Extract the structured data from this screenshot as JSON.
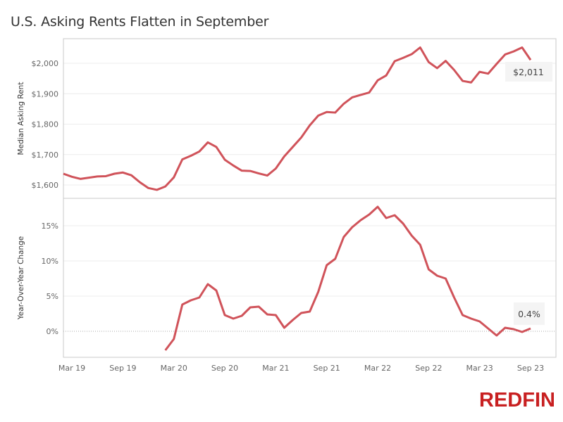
{
  "title": "U.S. Asking Rents Flatten in September",
  "logo": "REDFIN",
  "chart_data": [
    {
      "type": "line",
      "ylabel": "Median Asking Rent",
      "ylim": [
        1570,
        2070
      ],
      "yticks": [
        1600,
        1700,
        1800,
        1900,
        2000
      ],
      "ytick_labels": [
        "$1,600",
        "$1,700",
        "$1,800",
        "$1,900",
        "$2,000"
      ],
      "grid": true,
      "line_color": "#d0535a",
      "x": [
        "2019-02",
        "2019-03",
        "2019-04",
        "2019-05",
        "2019-06",
        "2019-07",
        "2019-08",
        "2019-09",
        "2019-10",
        "2019-11",
        "2019-12",
        "2020-01",
        "2020-02",
        "2020-03",
        "2020-04",
        "2020-05",
        "2020-06",
        "2020-07",
        "2020-08",
        "2020-09",
        "2020-10",
        "2020-11",
        "2020-12",
        "2021-01",
        "2021-02",
        "2021-03",
        "2021-04",
        "2021-05",
        "2021-06",
        "2021-07",
        "2021-08",
        "2021-09",
        "2021-10",
        "2021-11",
        "2021-12",
        "2022-01",
        "2022-02",
        "2022-03",
        "2022-04",
        "2022-05",
        "2022-06",
        "2022-07",
        "2022-08",
        "2022-09",
        "2022-10",
        "2022-11",
        "2022-12",
        "2023-01",
        "2023-02",
        "2023-03",
        "2023-04",
        "2023-05",
        "2023-06",
        "2023-07",
        "2023-08",
        "2023-09"
      ],
      "values": [
        1637,
        1627,
        1620,
        1624,
        1628,
        1629,
        1637,
        1641,
        1632,
        1609,
        1590,
        1584,
        1595,
        1625,
        1684,
        1696,
        1710,
        1740,
        1725,
        1683,
        1664,
        1647,
        1646,
        1638,
        1631,
        1654,
        1694,
        1725,
        1756,
        1796,
        1828,
        1840,
        1838,
        1867,
        1888,
        1896,
        1904,
        1944,
        1960,
        2007,
        2018,
        2030,
        2052,
        2004,
        1984,
        2008,
        1978,
        1942,
        1937,
        1972,
        1966,
        1998,
        2029,
        2039,
        2052,
        2011
      ],
      "annotation": "$2,011"
    },
    {
      "type": "line",
      "ylabel": "Year-Over-Year Change",
      "ylim": [
        -3.7,
        19
      ],
      "yticks": [
        0,
        5,
        10,
        15
      ],
      "ytick_labels": [
        "0%",
        "5%",
        "10%",
        "15%"
      ],
      "zero_line": "dotted",
      "grid": true,
      "line_color": "#d0535a",
      "x": [
        "2020-02",
        "2020-03",
        "2020-04",
        "2020-05",
        "2020-06",
        "2020-07",
        "2020-08",
        "2020-09",
        "2020-10",
        "2020-11",
        "2020-12",
        "2021-01",
        "2021-02",
        "2021-03",
        "2021-04",
        "2021-05",
        "2021-06",
        "2021-07",
        "2021-08",
        "2021-09",
        "2021-10",
        "2021-11",
        "2021-12",
        "2022-01",
        "2022-02",
        "2022-03",
        "2022-04",
        "2022-05",
        "2022-06",
        "2022-07",
        "2022-08",
        "2022-09",
        "2022-10",
        "2022-11",
        "2022-12",
        "2023-01",
        "2023-02",
        "2023-03",
        "2023-04",
        "2023-05",
        "2023-06",
        "2023-07",
        "2023-08",
        "2023-09"
      ],
      "values": [
        -2.7,
        -1.1,
        3.8,
        4.4,
        4.8,
        6.7,
        5.8,
        2.3,
        1.8,
        2.2,
        3.4,
        3.5,
        2.4,
        2.3,
        0.5,
        1.6,
        2.6,
        2.8,
        5.6,
        9.4,
        10.3,
        13.4,
        14.8,
        15.8,
        16.6,
        17.7,
        16.1,
        16.5,
        15.3,
        13.6,
        12.3,
        8.8,
        7.9,
        7.5,
        4.8,
        2.3,
        1.8,
        1.4,
        0.4,
        -0.6,
        0.5,
        0.3,
        -0.1,
        0.4
      ],
      "annotation": "0.4%"
    }
  ],
  "x_ticks": [
    "Mar 19",
    "Sep 19",
    "Mar 20",
    "Sep 20",
    "Mar 21",
    "Sep 21",
    "Mar 22",
    "Sep 22",
    "Mar 23",
    "Sep 23"
  ],
  "x_tick_months": [
    "2019-03",
    "2019-09",
    "2020-03",
    "2020-09",
    "2021-03",
    "2021-09",
    "2022-03",
    "2022-09",
    "2023-03",
    "2023-09"
  ]
}
